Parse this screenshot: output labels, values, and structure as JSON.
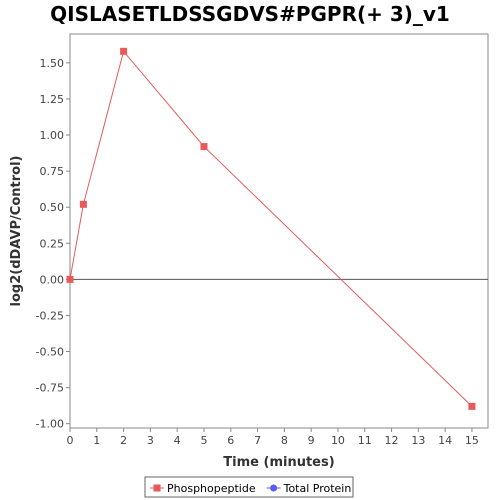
{
  "chart_data": {
    "type": "line",
    "title": "QISLASETLDSSGDVS#PGPR(+ 3)_v1",
    "xlabel": "Time (minutes)",
    "ylabel": "log2(dDAVP/Control)",
    "xlim": [
      0,
      15.6
    ],
    "ylim": [
      -1.03,
      1.7
    ],
    "x_ticks": [
      0,
      1,
      2,
      3,
      4,
      5,
      6,
      7,
      8,
      9,
      10,
      11,
      12,
      13,
      14,
      15
    ],
    "y_ticks": [
      -1.0,
      -0.75,
      -0.5,
      -0.25,
      0.0,
      0.25,
      0.5,
      0.75,
      1.0,
      1.25,
      1.5
    ],
    "y_tick_labels": [
      "-1.00",
      "-0.75",
      "-0.50",
      "-0.25",
      "0.00",
      "0.25",
      "0.50",
      "0.75",
      "1.00",
      "1.25",
      "1.50"
    ],
    "grid": false,
    "zero_line": true,
    "legend_position": "bottom",
    "series": [
      {
        "name": "Phosphopeptide",
        "color": "#e8595a",
        "marker": "square",
        "x": [
          0,
          0.5,
          2,
          5,
          15
        ],
        "y": [
          0.0,
          0.52,
          1.58,
          0.92,
          -0.88
        ]
      },
      {
        "name": "Total Protein",
        "color": "#5b5bef",
        "marker": "circle",
        "x": [],
        "y": []
      }
    ]
  }
}
